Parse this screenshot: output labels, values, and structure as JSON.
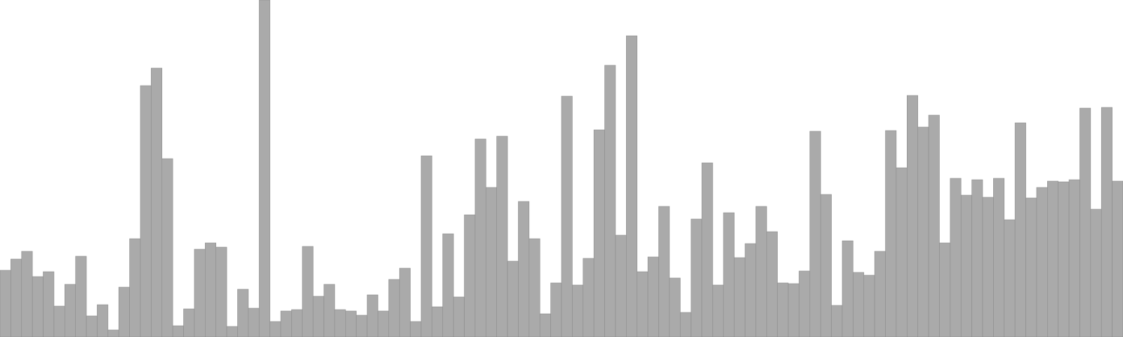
{
  "chart_data": {
    "type": "bar",
    "title": "",
    "xlabel": "",
    "ylabel": "",
    "ylim": [
      0,
      480
    ],
    "grid": false,
    "legend": "none",
    "colors": {
      "bar_fill": "#aaaaaa",
      "bar_stroke": "#8c8c8c",
      "background": "#ffffff"
    },
    "values": [
      95,
      111,
      122,
      86,
      93,
      44,
      75,
      115,
      30,
      46,
      10,
      71,
      140,
      358,
      383,
      254,
      16,
      40,
      125,
      134,
      128,
      15,
      68,
      41,
      480,
      22,
      37,
      39,
      129,
      58,
      75,
      39,
      37,
      31,
      60,
      37,
      82,
      98,
      22,
      258,
      43,
      147,
      57,
      174,
      282,
      213,
      286,
      108,
      193,
      140,
      33,
      77,
      343,
      74,
      112,
      295,
      387,
      145,
      429,
      93,
      114,
      186,
      84,
      35,
      168,
      248,
      74,
      177,
      113,
      133,
      186,
      150,
      77,
      76,
      94,
      293,
      203,
      45,
      137,
      92,
      88,
      122,
      294,
      241,
      344,
      299,
      316,
      134,
      226,
      202,
      224,
      199,
      226,
      167,
      305,
      198,
      213,
      222,
      221,
      224,
      326,
      182,
      327,
      222
    ]
  }
}
